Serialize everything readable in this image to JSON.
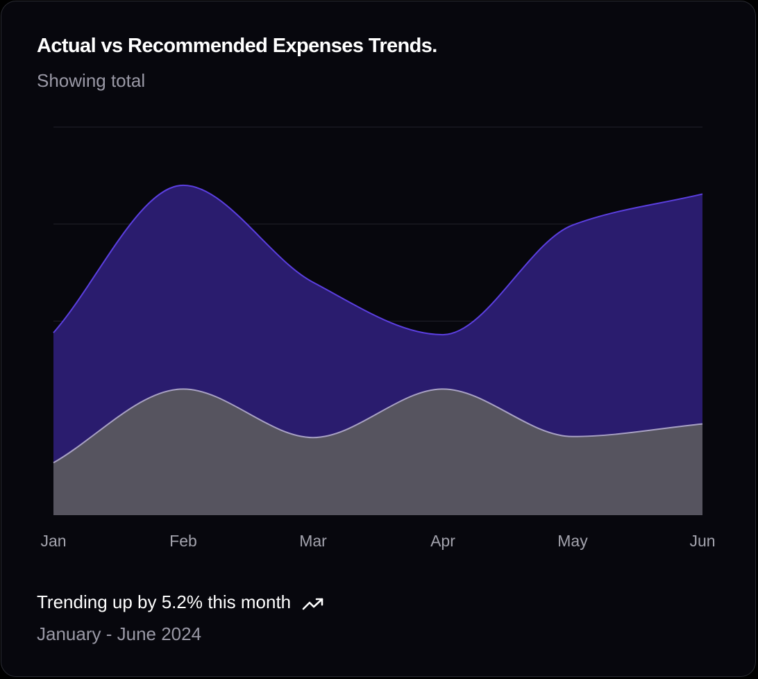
{
  "card": {
    "title": "Actual vs Recommended Expenses Trends.",
    "subtitle": "Showing total",
    "footer": {
      "trend_text": "Trending up by 5.2% this month",
      "trend_icon": "trending-up-icon",
      "date_range": "January - June 2024"
    }
  },
  "colors": {
    "background": "#07070d",
    "series_primary_stroke": "#5b3fe0",
    "series_primary_fill": "#2a1c6e",
    "series_secondary_stroke": "#a9a2c4",
    "series_secondary_fill": "#56545f",
    "gridline": "#22222c"
  },
  "chart_data": {
    "type": "area",
    "stacked": true,
    "categories": [
      "Jan",
      "Feb",
      "Mar",
      "Apr",
      "May",
      "Jun"
    ],
    "series": [
      {
        "values": [
          54,
          130,
          80,
          130,
          81,
          94
        ]
      },
      {
        "values": [
          134,
          210,
          160,
          56,
          218,
          237
        ]
      }
    ],
    "ylim": [
      0,
      400
    ],
    "grid": true
  }
}
